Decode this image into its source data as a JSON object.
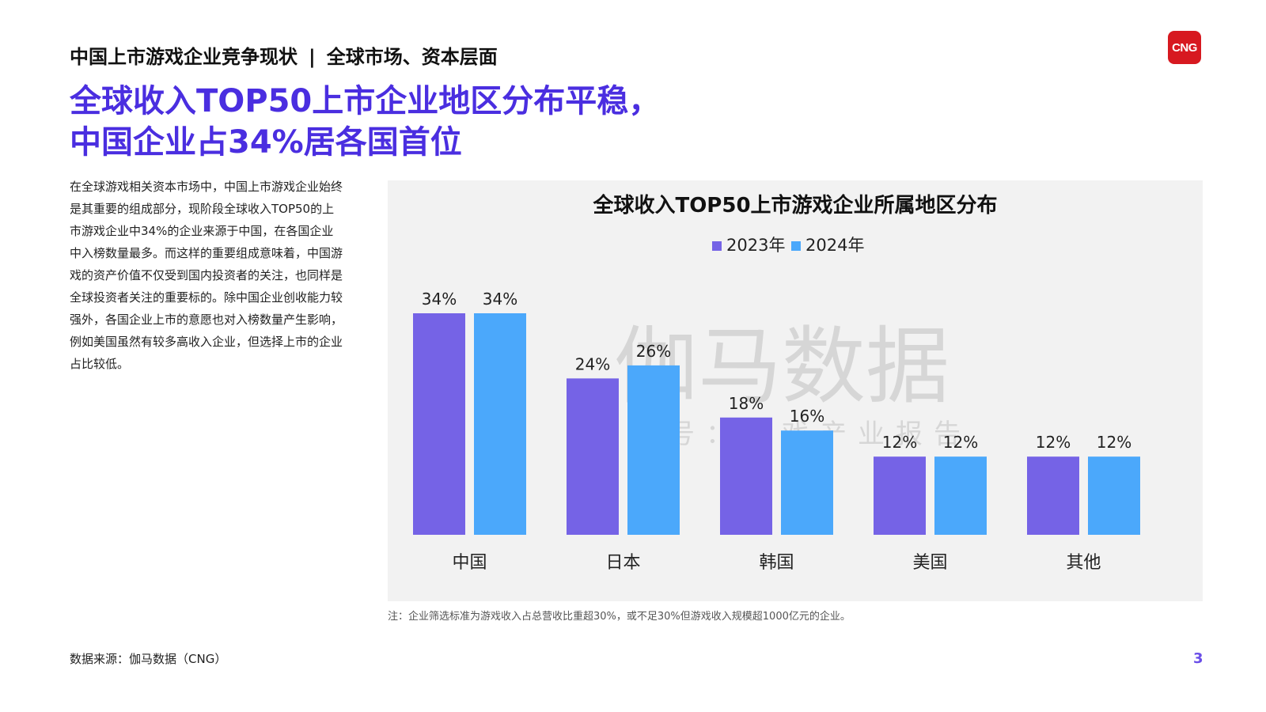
{
  "header": {
    "left": "中国上市游戏企业竞争现状",
    "separator": "|",
    "right": "全球市场、资本层面"
  },
  "logo": {
    "text": "CNG",
    "color": "#d71920"
  },
  "headline": {
    "line1": "全球收入TOP50上市企业地区分布平稳，",
    "line2": "中国企业占34%居各国首位"
  },
  "body_text": "在全球游戏相关资本市场中，中国上市游戏企业始终是其重要的组成部分，现阶段全球收入TOP50的上市游戏企业中34%的企业来源于中国，在各国企业中入榜数量最多。而这样的重要组成意味着，中国游戏的资产价值不仅受到国内投资者的关注，也同样是全球投资者关注的重要标的。除中国企业创收能力较强外，各国企业上市的意愿也对入榜数量产生影响，例如美国虽然有较多高收入企业，但选择上市的企业占比较低。",
  "watermark": {
    "main": "伽马数据",
    "sub": "微信号：游戏产业报告"
  },
  "chart_data": {
    "type": "bar",
    "title": "全球收入TOP50上市游戏企业所属地区分布",
    "categories": [
      "中国",
      "日本",
      "韩国",
      "美国",
      "其他"
    ],
    "series": [
      {
        "name": "2023年",
        "values": [
          34,
          24,
          18,
          12,
          12
        ],
        "labels": [
          "34%",
          "24%",
          "18%",
          "12%",
          "12%"
        ],
        "color": "#7563e6"
      },
      {
        "name": "2024年",
        "values": [
          34,
          26,
          16,
          12,
          12
        ],
        "labels": [
          "34%",
          "26%",
          "16%",
          "12%",
          "12%"
        ],
        "color": "#4ba8fb"
      }
    ],
    "ylim": [
      0,
      34
    ],
    "grid": false,
    "legend": "top-center",
    "background": "#f2f2f2"
  },
  "note": "注：企业筛选标准为游戏收入占总营收比重超30%，或不足30%但游戏收入规模超1000亿元的企业。",
  "source": "数据来源：伽马数据（CNG）",
  "page_number": "3"
}
